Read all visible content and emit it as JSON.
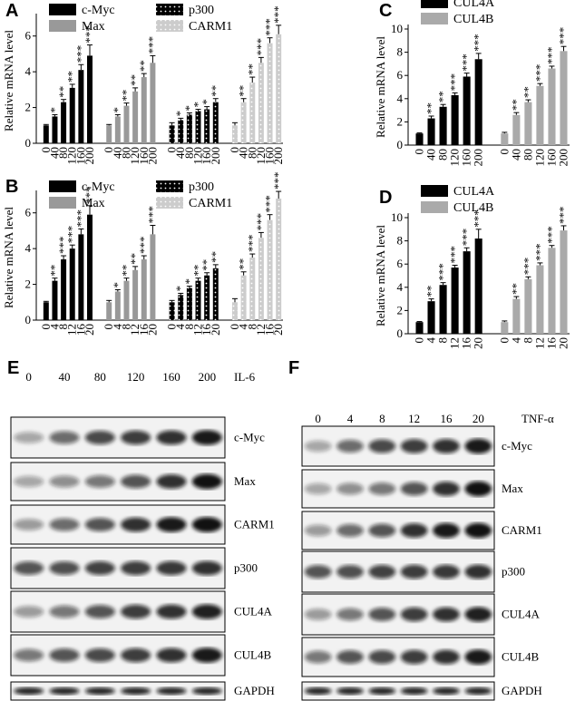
{
  "chart_data": [
    {
      "type": "bar",
      "panel": "A",
      "y_label": "Relative mRNA level",
      "ylim": [
        0,
        7
      ],
      "yticks": [
        0,
        2,
        4,
        6
      ],
      "legend": "top-left",
      "series": [
        {
          "name": "c-Myc",
          "color": "#000000",
          "pattern": "solid",
          "categories": [
            "0",
            "40",
            "80",
            "120",
            "160",
            "200"
          ],
          "values": [
            1,
            1.5,
            2.3,
            3.1,
            4.1,
            4.9
          ],
          "errors": [
            0.05,
            0.1,
            0.15,
            0.2,
            0.3,
            0.6
          ],
          "stars": [
            null,
            "*",
            "**",
            "**",
            "***",
            "***"
          ]
        },
        {
          "name": "Max",
          "color": "#999999",
          "pattern": "solid",
          "categories": [
            "0",
            "40",
            "80",
            "120",
            "160",
            "200"
          ],
          "values": [
            1,
            1.5,
            2.1,
            2.9,
            3.7,
            4.5
          ],
          "errors": [
            0.05,
            0.1,
            0.15,
            0.2,
            0.2,
            0.4
          ],
          "stars": [
            null,
            "*",
            "**",
            "**",
            "**",
            "***"
          ]
        },
        {
          "name": "p300",
          "color": "#000000",
          "pattern": "dots",
          "categories": [
            "0",
            "40",
            "80",
            "120",
            "160",
            "200"
          ],
          "values": [
            1,
            1.3,
            1.6,
            1.8,
            1.9,
            2.3
          ],
          "errors": [
            0.15,
            0.1,
            0.1,
            0.1,
            0.15,
            0.2
          ],
          "stars": [
            null,
            "*",
            "*",
            "*",
            "*",
            "**"
          ]
        },
        {
          "name": "CARM1",
          "color": "#cccccc",
          "pattern": "dots",
          "categories": [
            "0",
            "40",
            "80",
            "120",
            "160",
            "200"
          ],
          "values": [
            1,
            2.3,
            3.4,
            4.5,
            5.6,
            6.1
          ],
          "errors": [
            0.15,
            0.2,
            0.3,
            0.3,
            0.3,
            0.5
          ],
          "stars": [
            null,
            "**",
            "**",
            "***",
            "***",
            "***"
          ]
        }
      ]
    },
    {
      "type": "bar",
      "panel": "B",
      "y_label": "Relative mRNA level",
      "ylim": [
        0,
        7
      ],
      "yticks": [
        0,
        2,
        4,
        6
      ],
      "legend": "top-left",
      "series": [
        {
          "name": "c-Myc",
          "color": "#000000",
          "pattern": "solid",
          "categories": [
            "0",
            "4",
            "8",
            "12",
            "16",
            "20"
          ],
          "values": [
            1,
            2.2,
            3.4,
            4.0,
            4.8,
            5.9
          ],
          "errors": [
            0.05,
            0.15,
            0.2,
            0.2,
            0.3,
            0.5
          ],
          "stars": [
            null,
            "**",
            "***",
            "***",
            "***",
            "***"
          ]
        },
        {
          "name": "Max",
          "color": "#999999",
          "pattern": "solid",
          "categories": [
            "0",
            "4",
            "8",
            "12",
            "16",
            "20"
          ],
          "values": [
            1,
            1.6,
            2.2,
            2.8,
            3.4,
            4.8
          ],
          "errors": [
            0.1,
            0.1,
            0.15,
            0.2,
            0.2,
            0.5
          ],
          "stars": [
            null,
            "*",
            "**",
            "**",
            "***",
            "***"
          ]
        },
        {
          "name": "p300",
          "color": "#000000",
          "pattern": "dots",
          "categories": [
            "0",
            "4",
            "8",
            "12",
            "16",
            "20"
          ],
          "values": [
            1,
            1.4,
            1.8,
            2.2,
            2.5,
            2.9
          ],
          "errors": [
            0.1,
            0.1,
            0.1,
            0.15,
            0.15,
            0.2
          ],
          "stars": [
            null,
            "*",
            "*",
            "**",
            "**",
            "**"
          ]
        },
        {
          "name": "CARM1",
          "color": "#cccccc",
          "pattern": "dots",
          "categories": [
            "0",
            "4",
            "8",
            "12",
            "16",
            "20"
          ],
          "values": [
            1,
            2.5,
            3.5,
            4.6,
            5.6,
            6.8
          ],
          "errors": [
            0.2,
            0.2,
            0.2,
            0.3,
            0.3,
            0.4
          ],
          "stars": [
            null,
            "**",
            "***",
            "***",
            "***",
            "***"
          ]
        }
      ]
    },
    {
      "type": "bar",
      "panel": "C",
      "y_label": "Relative mRNA level",
      "ylim": [
        0,
        10
      ],
      "yticks": [
        0,
        2,
        4,
        6,
        8,
        10
      ],
      "legend": "top-left",
      "series": [
        {
          "name": "CUL4A",
          "color": "#000000",
          "pattern": "solid",
          "categories": [
            "0",
            "40",
            "80",
            "120",
            "160",
            "200"
          ],
          "values": [
            1,
            2.3,
            3.3,
            4.3,
            5.9,
            7.4
          ],
          "errors": [
            0.05,
            0.2,
            0.2,
            0.2,
            0.3,
            0.5
          ],
          "stars": [
            null,
            "**",
            "**",
            "***",
            "***",
            "***"
          ]
        },
        {
          "name": "CUL4B",
          "color": "#aaaaaa",
          "pattern": "solid",
          "categories": [
            "0",
            "40",
            "80",
            "120",
            "160",
            "200"
          ],
          "values": [
            1,
            2.6,
            3.7,
            5.1,
            6.6,
            8.1
          ],
          "errors": [
            0.1,
            0.2,
            0.2,
            0.2,
            0.2,
            0.4
          ],
          "stars": [
            null,
            "**",
            "**",
            "***",
            "***",
            "***"
          ]
        }
      ]
    },
    {
      "type": "bar",
      "panel": "D",
      "y_label": "Relative mRNA level",
      "ylim": [
        0,
        10
      ],
      "yticks": [
        0,
        2,
        4,
        6,
        8,
        10
      ],
      "legend": "top-left",
      "series": [
        {
          "name": "CUL4A",
          "color": "#000000",
          "pattern": "solid",
          "categories": [
            "0",
            "4",
            "8",
            "12",
            "16",
            "20"
          ],
          "values": [
            1,
            2.8,
            4.2,
            5.7,
            7.1,
            8.2
          ],
          "errors": [
            0.05,
            0.2,
            0.2,
            0.2,
            0.3,
            0.8
          ],
          "stars": [
            null,
            "**",
            "***",
            "***",
            "***",
            "***"
          ]
        },
        {
          "name": "CUL4B",
          "color": "#aaaaaa",
          "pattern": "solid",
          "categories": [
            "0",
            "4",
            "8",
            "12",
            "16",
            "20"
          ],
          "values": [
            1,
            3.0,
            4.7,
            5.9,
            7.4,
            8.9
          ],
          "errors": [
            0.1,
            0.2,
            0.2,
            0.2,
            0.2,
            0.4
          ],
          "stars": [
            null,
            "**",
            "***",
            "***",
            "***",
            "***"
          ]
        }
      ]
    }
  ],
  "blots": [
    {
      "panel": "E",
      "treatment": "IL-6",
      "lanes": [
        "0",
        "40",
        "80",
        "120",
        "160",
        "200"
      ],
      "rows": [
        "c-Myc",
        "Max",
        "CARM1",
        "p300",
        "CUL4A",
        "CUL4B",
        "GAPDH"
      ]
    },
    {
      "panel": "F",
      "treatment": "TNF-α",
      "lanes": [
        "0",
        "4",
        "8",
        "12",
        "16",
        "20"
      ],
      "rows": [
        "c-Myc",
        "Max",
        "CARM1",
        "p300",
        "CUL4A",
        "CUL4B",
        "GAPDH"
      ]
    }
  ]
}
